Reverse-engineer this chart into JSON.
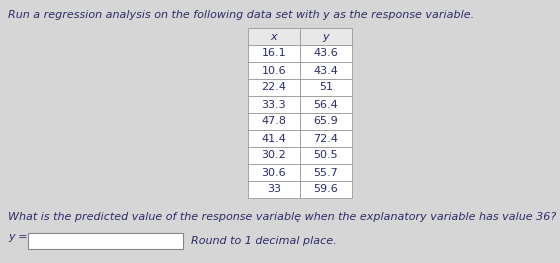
{
  "title": "Run a regression analysis on the following data set with y as the response variable.",
  "x_data": [
    16.1,
    10.6,
    22.4,
    33.3,
    47.8,
    41.4,
    30.2,
    30.6,
    33
  ],
  "y_data": [
    43.6,
    43.4,
    51,
    56.4,
    65.9,
    72.4,
    50.5,
    55.7,
    59.6
  ],
  "col_headers": [
    "x",
    "y"
  ],
  "question": "What is the predicted value of the response variablę when the explanatory variable has value 36?",
  "answer_label": "y =",
  "answer_note": "Round to 1 decimal place.",
  "bg_color": "#d6d6d6",
  "table_bg": "#ffffff",
  "header_bg": "#e8e8e8",
  "text_color": "#2b2b6b",
  "font_size_title": 8.0,
  "font_size_table": 8.0,
  "font_size_question": 8.0
}
